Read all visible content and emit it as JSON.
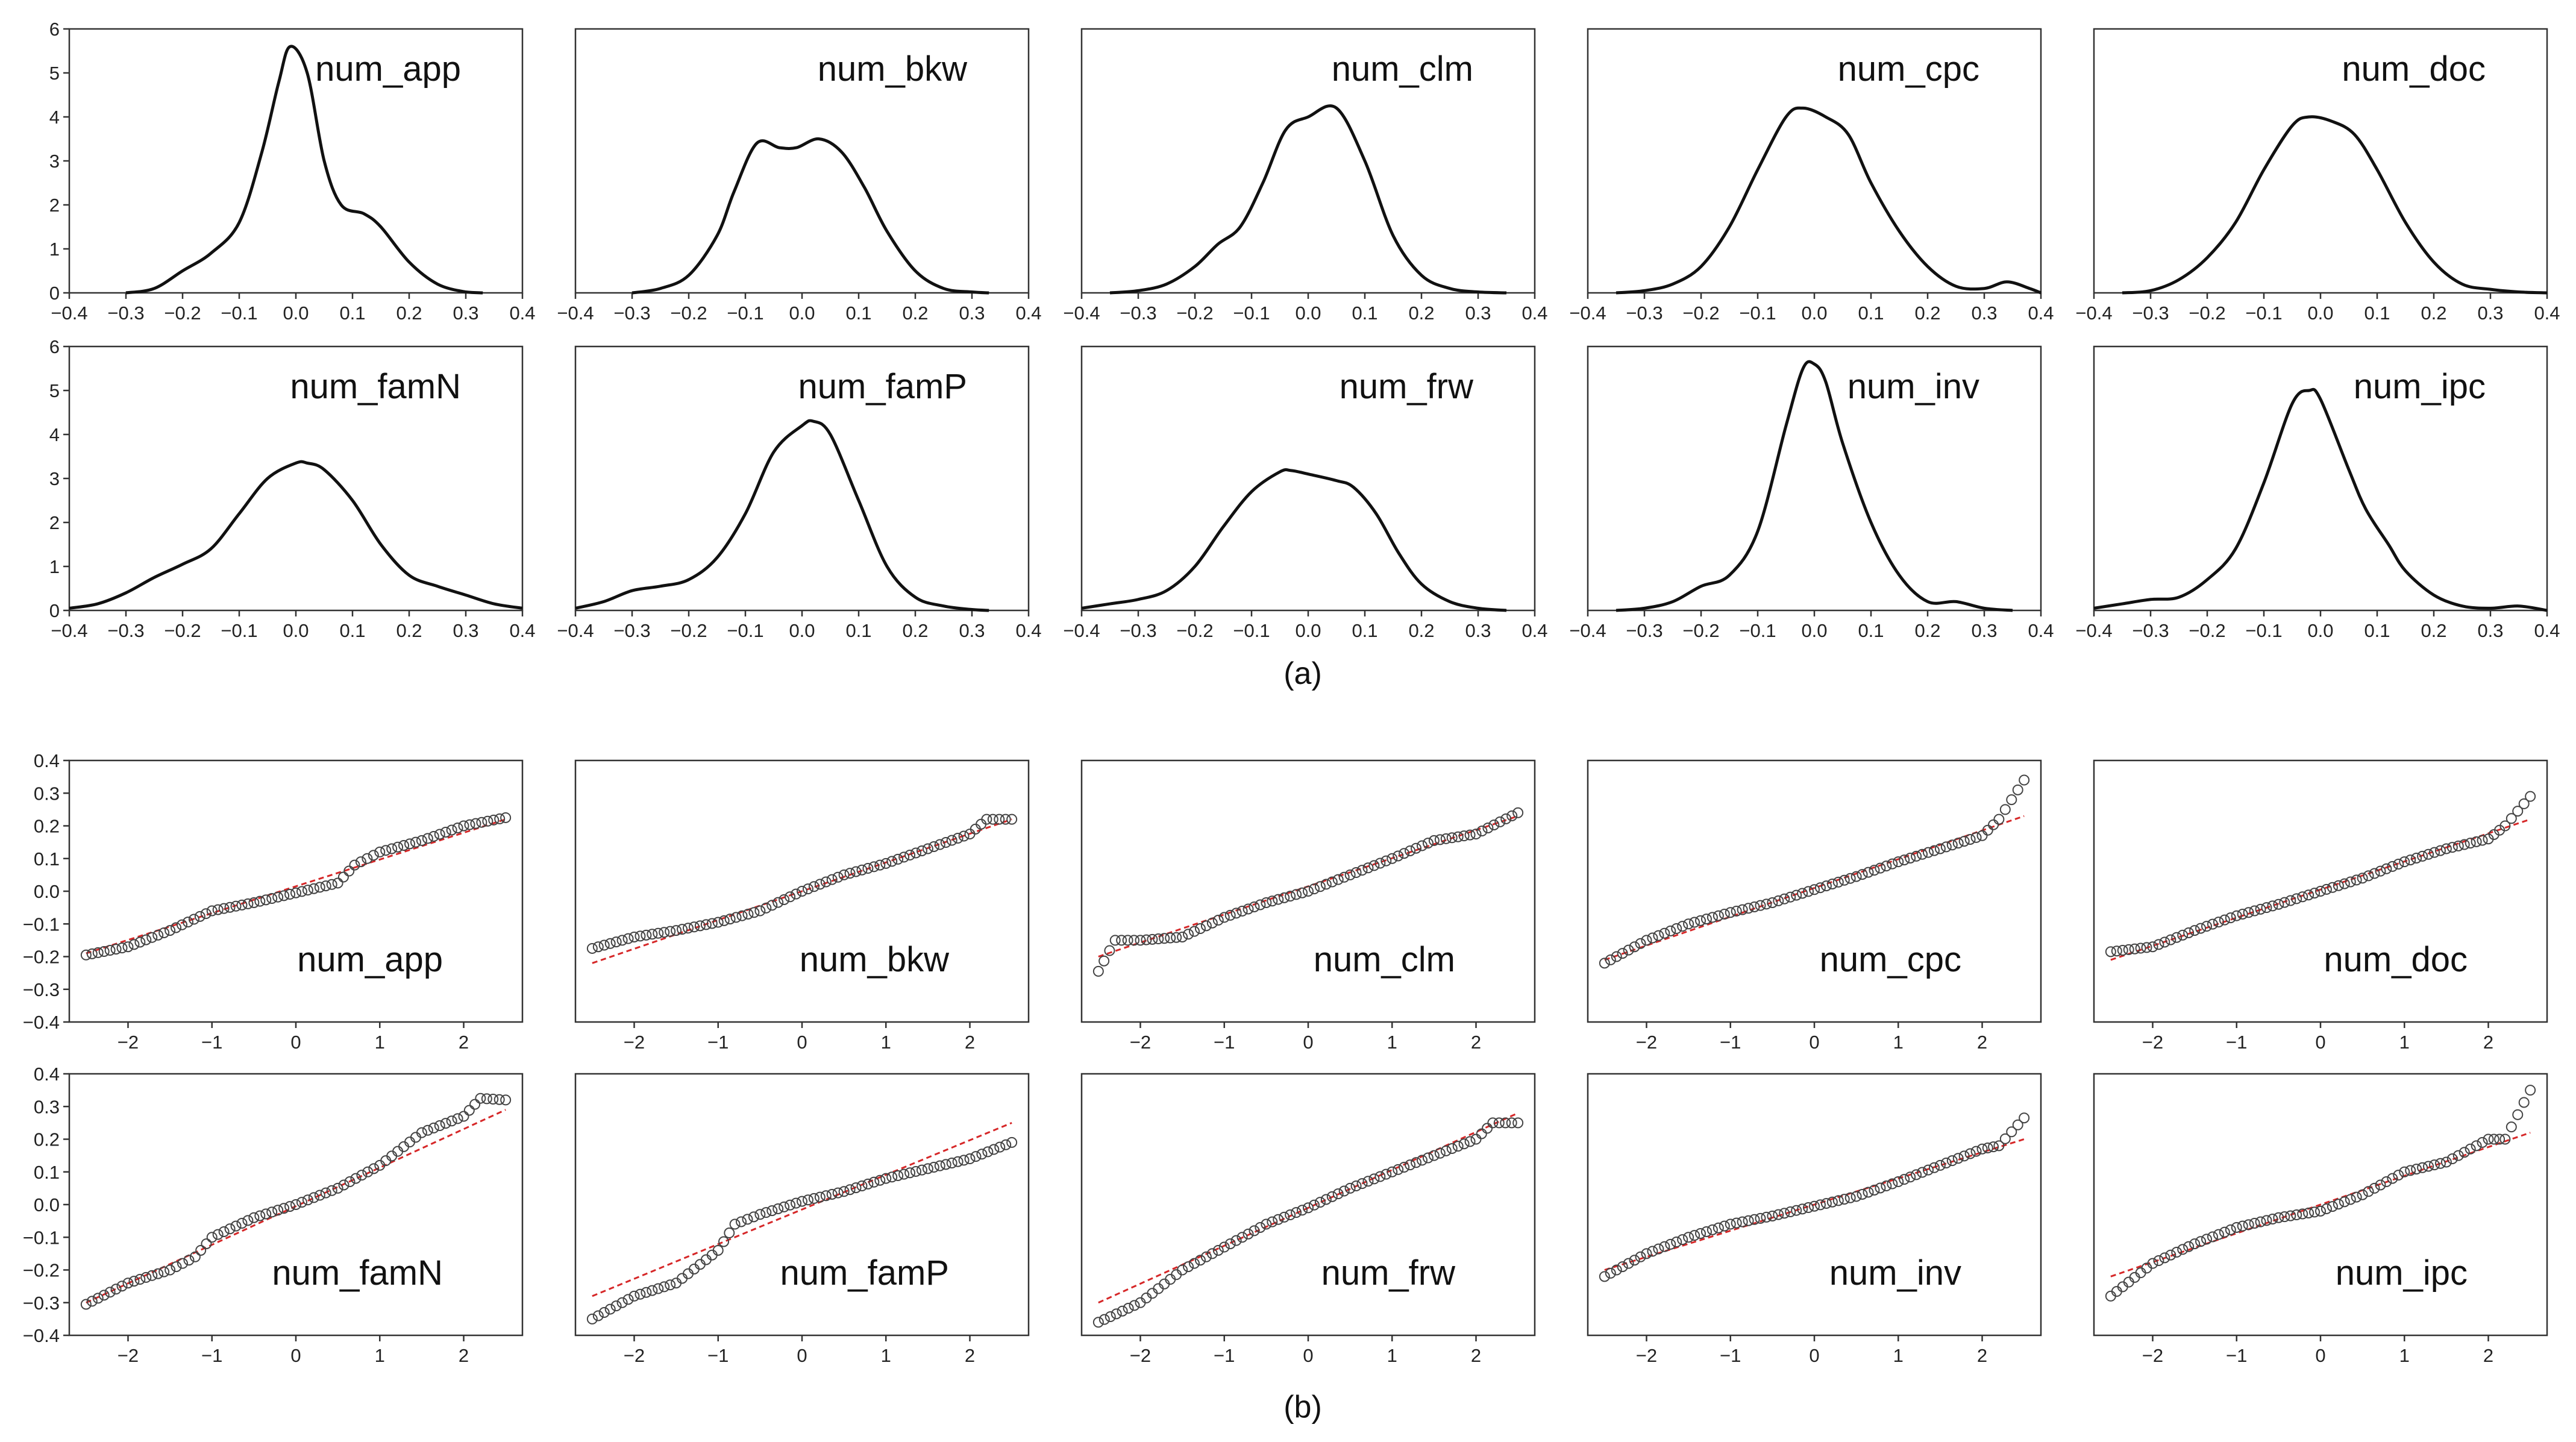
{
  "captions": {
    "a": "(a)",
    "b": "(b)"
  },
  "colors": {
    "kde_line": "#111111",
    "axes": "#333333",
    "ref_line": "#d62728",
    "marker_edge": "#444444"
  },
  "chart_data": [
    {
      "id": "a",
      "type": "line",
      "description": "kernel density estimates",
      "xlim": [
        -0.4,
        0.4
      ],
      "ylim": [
        0,
        6
      ],
      "xticks": [
        "-0.4",
        "-0.3",
        "-0.2",
        "-0.1",
        "0.0",
        "0.1",
        "0.2",
        "0.3",
        "0.4"
      ],
      "yticks": [
        "0",
        "1",
        "2",
        "3",
        "4",
        "5",
        "6"
      ],
      "panels": [
        {
          "title": "num_app",
          "x": [
            -0.3,
            -0.25,
            -0.2,
            -0.15,
            -0.1,
            -0.06,
            -0.03,
            -0.01,
            0.02,
            0.05,
            0.08,
            0.12,
            0.15,
            0.2,
            0.25,
            0.3,
            0.33
          ],
          "y": [
            0,
            0.1,
            0.5,
            0.9,
            1.6,
            3.2,
            4.8,
            5.6,
            5.0,
            3.0,
            2.0,
            1.8,
            1.5,
            0.7,
            0.2,
            0.02,
            0
          ]
        },
        {
          "title": "num_bkw",
          "x": [
            -0.3,
            -0.25,
            -0.2,
            -0.15,
            -0.12,
            -0.08,
            -0.04,
            -0.01,
            0.03,
            0.07,
            0.11,
            0.15,
            0.2,
            0.25,
            0.3,
            0.33
          ],
          "y": [
            0,
            0.1,
            0.4,
            1.3,
            2.3,
            3.4,
            3.3,
            3.3,
            3.5,
            3.2,
            2.4,
            1.4,
            0.5,
            0.1,
            0.02,
            0
          ]
        },
        {
          "title": "num_clm",
          "x": [
            -0.35,
            -0.3,
            -0.25,
            -0.2,
            -0.16,
            -0.12,
            -0.08,
            -0.04,
            0.0,
            0.05,
            0.1,
            0.15,
            0.2,
            0.25,
            0.3,
            0.35
          ],
          "y": [
            0,
            0.05,
            0.2,
            0.6,
            1.1,
            1.5,
            2.5,
            3.7,
            4.0,
            4.2,
            3.0,
            1.3,
            0.4,
            0.1,
            0.02,
            0
          ]
        },
        {
          "title": "num_cpc",
          "x": [
            -0.35,
            -0.3,
            -0.25,
            -0.2,
            -0.15,
            -0.1,
            -0.05,
            -0.02,
            0.02,
            0.06,
            0.1,
            0.15,
            0.2,
            0.25,
            0.3,
            0.34,
            0.38,
            0.4
          ],
          "y": [
            0,
            0.05,
            0.2,
            0.6,
            1.5,
            2.8,
            4.0,
            4.2,
            4.0,
            3.6,
            2.5,
            1.4,
            0.6,
            0.15,
            0.1,
            0.25,
            0.1,
            0
          ]
        },
        {
          "title": "num_doc",
          "x": [
            -0.35,
            -0.3,
            -0.25,
            -0.2,
            -0.15,
            -0.1,
            -0.05,
            -0.02,
            0.02,
            0.06,
            0.1,
            0.15,
            0.2,
            0.25,
            0.3,
            0.35,
            0.4
          ],
          "y": [
            0,
            0.05,
            0.3,
            0.8,
            1.6,
            2.8,
            3.8,
            4.0,
            3.9,
            3.6,
            2.8,
            1.6,
            0.7,
            0.2,
            0.08,
            0.02,
            0
          ]
        },
        {
          "title": "num_famN",
          "x": [
            -0.4,
            -0.35,
            -0.3,
            -0.25,
            -0.2,
            -0.15,
            -0.1,
            -0.05,
            0.0,
            0.02,
            0.05,
            0.1,
            0.15,
            0.2,
            0.25,
            0.3,
            0.35,
            0.4
          ],
          "y": [
            0.05,
            0.15,
            0.4,
            0.75,
            1.05,
            1.4,
            2.2,
            3.0,
            3.35,
            3.35,
            3.2,
            2.5,
            1.5,
            0.8,
            0.55,
            0.35,
            0.15,
            0.05
          ]
        },
        {
          "title": "num_famP",
          "x": [
            -0.4,
            -0.35,
            -0.3,
            -0.25,
            -0.2,
            -0.15,
            -0.1,
            -0.05,
            0.0,
            0.02,
            0.05,
            0.1,
            0.15,
            0.2,
            0.25,
            0.3,
            0.33
          ],
          "y": [
            0.05,
            0.2,
            0.45,
            0.55,
            0.7,
            1.2,
            2.2,
            3.6,
            4.2,
            4.3,
            4.0,
            2.5,
            1.0,
            0.3,
            0.1,
            0.02,
            0
          ]
        },
        {
          "title": "num_frw",
          "x": [
            -0.4,
            -0.35,
            -0.3,
            -0.25,
            -0.2,
            -0.15,
            -0.1,
            -0.05,
            -0.03,
            0.0,
            0.05,
            0.08,
            0.12,
            0.16,
            0.2,
            0.25,
            0.3,
            0.35
          ],
          "y": [
            0.05,
            0.15,
            0.25,
            0.45,
            1.0,
            1.9,
            2.7,
            3.15,
            3.18,
            3.1,
            2.95,
            2.8,
            2.2,
            1.3,
            0.6,
            0.2,
            0.05,
            0
          ]
        },
        {
          "title": "num_inv",
          "x": [
            -0.35,
            -0.3,
            -0.25,
            -0.2,
            -0.15,
            -0.1,
            -0.05,
            -0.02,
            0.0,
            0.02,
            0.05,
            0.1,
            0.15,
            0.2,
            0.25,
            0.3,
            0.35
          ],
          "y": [
            0,
            0.05,
            0.2,
            0.55,
            0.8,
            1.8,
            4.2,
            5.5,
            5.6,
            5.2,
            3.8,
            2.0,
            0.8,
            0.2,
            0.2,
            0.05,
            0
          ]
        },
        {
          "title": "num_ipc",
          "x": [
            -0.4,
            -0.35,
            -0.3,
            -0.25,
            -0.2,
            -0.15,
            -0.1,
            -0.05,
            -0.02,
            0.0,
            0.05,
            0.08,
            0.12,
            0.15,
            0.2,
            0.25,
            0.3,
            0.35,
            0.4
          ],
          "y": [
            0.05,
            0.15,
            0.25,
            0.3,
            0.7,
            1.4,
            2.9,
            4.7,
            5.0,
            4.8,
            3.2,
            2.3,
            1.5,
            0.9,
            0.35,
            0.1,
            0.05,
            0.1,
            0
          ]
        }
      ]
    },
    {
      "id": "b",
      "type": "scatter",
      "description": "Q-Q plots with reference lines",
      "xlim": [
        -2.7,
        2.7
      ],
      "ylim": [
        -0.4,
        0.4
      ],
      "xticks": [
        "-2",
        "-1",
        "0",
        "1",
        "2"
      ],
      "xtick_values": [
        -2,
        -1,
        0,
        1,
        2
      ],
      "yticks": [
        "-0.4",
        "-0.3",
        "-0.2",
        "-0.1",
        "0.0",
        "0.1",
        "0.2",
        "0.3",
        "0.4"
      ],
      "panels": [
        {
          "title": "num_app",
          "line": [
            -0.19,
            0.22
          ],
          "quantiles": [
            [
              -2.5,
              -0.195
            ],
            [
              -2.0,
              -0.17
            ],
            [
              -1.5,
              -0.12
            ],
            [
              -1.0,
              -0.06
            ],
            [
              -0.5,
              -0.035
            ],
            [
              0.0,
              -0.005
            ],
            [
              0.5,
              0.025
            ],
            [
              0.7,
              0.08
            ],
            [
              1.0,
              0.12
            ],
            [
              1.5,
              0.155
            ],
            [
              2.0,
              0.2
            ],
            [
              2.5,
              0.225
            ]
          ]
        },
        {
          "title": "num_bkw",
          "line": [
            -0.22,
            0.22
          ],
          "quantiles": [
            [
              -2.5,
              -0.175
            ],
            [
              -2.0,
              -0.14
            ],
            [
              -1.5,
              -0.12
            ],
            [
              -1.0,
              -0.095
            ],
            [
              -0.5,
              -0.06
            ],
            [
              0.0,
              0.0
            ],
            [
              0.5,
              0.05
            ],
            [
              1.0,
              0.085
            ],
            [
              1.5,
              0.13
            ],
            [
              2.0,
              0.175
            ],
            [
              2.2,
              0.22
            ],
            [
              2.5,
              0.22
            ]
          ]
        },
        {
          "title": "num_clm",
          "line": [
            -0.2,
            0.23
          ],
          "quantiles": [
            [
              -2.5,
              -0.245
            ],
            [
              -2.3,
              -0.15
            ],
            [
              -2.0,
              -0.15
            ],
            [
              -1.5,
              -0.14
            ],
            [
              -1.0,
              -0.08
            ],
            [
              -0.5,
              -0.035
            ],
            [
              0.0,
              0.0
            ],
            [
              0.5,
              0.05
            ],
            [
              1.0,
              0.1
            ],
            [
              1.5,
              0.155
            ],
            [
              2.0,
              0.175
            ],
            [
              2.5,
              0.24
            ]
          ]
        },
        {
          "title": "num_cpc",
          "line": [
            -0.21,
            0.23
          ],
          "quantiles": [
            [
              -2.5,
              -0.22
            ],
            [
              -2.0,
              -0.15
            ],
            [
              -1.5,
              -0.1
            ],
            [
              -1.0,
              -0.065
            ],
            [
              -0.5,
              -0.035
            ],
            [
              0.0,
              0.005
            ],
            [
              0.5,
              0.045
            ],
            [
              1.0,
              0.09
            ],
            [
              1.5,
              0.13
            ],
            [
              2.0,
              0.17
            ],
            [
              2.2,
              0.22
            ],
            [
              2.5,
              0.34
            ]
          ]
        },
        {
          "title": "num_doc",
          "line": [
            -0.21,
            0.22
          ],
          "quantiles": [
            [
              -2.5,
              -0.185
            ],
            [
              -2.0,
              -0.17
            ],
            [
              -1.5,
              -0.12
            ],
            [
              -1.0,
              -0.075
            ],
            [
              -0.5,
              -0.04
            ],
            [
              0.0,
              0.0
            ],
            [
              0.5,
              0.04
            ],
            [
              1.0,
              0.09
            ],
            [
              1.5,
              0.13
            ],
            [
              2.0,
              0.16
            ],
            [
              2.2,
              0.2
            ],
            [
              2.5,
              0.29
            ]
          ]
        },
        {
          "title": "num_famN",
          "line": [
            -0.3,
            0.29
          ],
          "quantiles": [
            [
              -2.5,
              -0.305
            ],
            [
              -2.0,
              -0.24
            ],
            [
              -1.5,
              -0.2
            ],
            [
              -1.2,
              -0.16
            ],
            [
              -1.0,
              -0.1
            ],
            [
              -0.5,
              -0.04
            ],
            [
              0.0,
              0.0
            ],
            [
              0.5,
              0.05
            ],
            [
              1.0,
              0.12
            ],
            [
              1.5,
              0.22
            ],
            [
              2.0,
              0.27
            ],
            [
              2.2,
              0.325
            ],
            [
              2.5,
              0.32
            ]
          ]
        },
        {
          "title": "num_famP",
          "line": [
            -0.28,
            0.25
          ],
          "quantiles": [
            [
              -2.5,
              -0.35
            ],
            [
              -2.0,
              -0.28
            ],
            [
              -1.5,
              -0.24
            ],
            [
              -1.0,
              -0.14
            ],
            [
              -0.8,
              -0.06
            ],
            [
              -0.5,
              -0.03
            ],
            [
              0.0,
              0.01
            ],
            [
              0.5,
              0.04
            ],
            [
              1.0,
              0.08
            ],
            [
              1.5,
              0.11
            ],
            [
              2.0,
              0.14
            ],
            [
              2.5,
              0.19
            ]
          ]
        },
        {
          "title": "num_frw",
          "line": [
            -0.3,
            0.28
          ],
          "quantiles": [
            [
              -2.5,
              -0.36
            ],
            [
              -2.0,
              -0.3
            ],
            [
              -1.5,
              -0.2
            ],
            [
              -1.0,
              -0.13
            ],
            [
              -0.5,
              -0.06
            ],
            [
              0.0,
              -0.01
            ],
            [
              0.5,
              0.05
            ],
            [
              1.0,
              0.1
            ],
            [
              1.5,
              0.15
            ],
            [
              2.0,
              0.2
            ],
            [
              2.2,
              0.25
            ],
            [
              2.5,
              0.25
            ]
          ]
        },
        {
          "title": "num_inv",
          "line": [
            -0.2,
            0.2
          ],
          "quantiles": [
            [
              -2.5,
              -0.22
            ],
            [
              -2.0,
              -0.15
            ],
            [
              -1.5,
              -0.1
            ],
            [
              -1.0,
              -0.06
            ],
            [
              -0.5,
              -0.035
            ],
            [
              0.0,
              -0.005
            ],
            [
              0.5,
              0.025
            ],
            [
              1.0,
              0.07
            ],
            [
              1.5,
              0.12
            ],
            [
              2.0,
              0.17
            ],
            [
              2.2,
              0.18
            ],
            [
              2.5,
              0.265
            ]
          ]
        },
        {
          "title": "num_ipc",
          "line": [
            -0.22,
            0.22
          ],
          "quantiles": [
            [
              -2.5,
              -0.28
            ],
            [
              -2.0,
              -0.18
            ],
            [
              -1.5,
              -0.12
            ],
            [
              -1.0,
              -0.07
            ],
            [
              -0.5,
              -0.04
            ],
            [
              0.0,
              -0.02
            ],
            [
              0.5,
              0.03
            ],
            [
              1.0,
              0.1
            ],
            [
              1.5,
              0.13
            ],
            [
              2.0,
              0.2
            ],
            [
              2.2,
              0.2
            ],
            [
              2.5,
              0.35
            ]
          ]
        }
      ]
    }
  ]
}
